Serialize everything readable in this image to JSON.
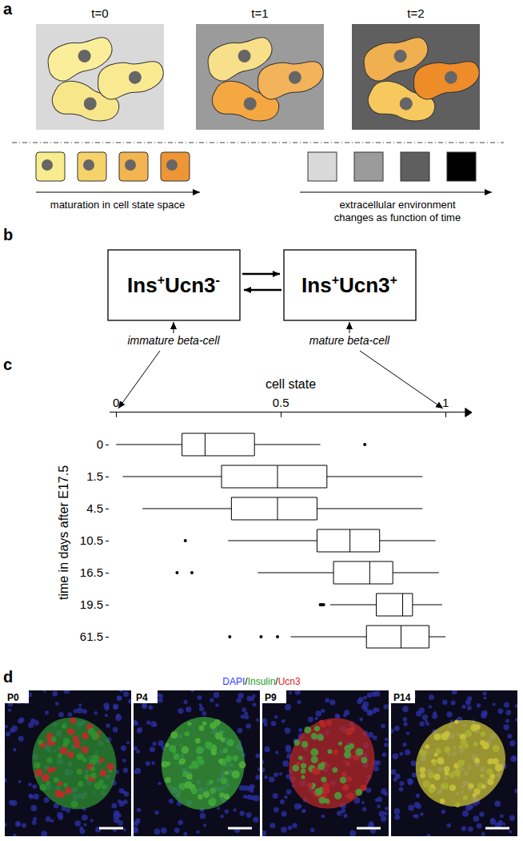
{
  "panel_labels": [
    "a",
    "b",
    "c",
    "d"
  ],
  "panel_a": {
    "time_labels": [
      "t=0",
      "t=1",
      "t=2"
    ],
    "cell_state_caption": "maturation in cell state space",
    "environment_caption": [
      "extracellular environment",
      "changes as function of time"
    ]
  },
  "panel_b": {
    "states": [
      {
        "label": "Ins+Ucn3-",
        "caption": "immature beta-cell"
      },
      {
        "label": "Ins+Ucn3+",
        "caption": "mature beta-cell"
      }
    ]
  },
  "chart_data": {
    "type": "box",
    "orientation": "horizontal",
    "x_label": "cell state",
    "y_label": "time in days after E17.5",
    "categories": [
      "0",
      "1.5",
      "4.5",
      "10.5",
      "16.5",
      "19.5",
      "61.5"
    ],
    "lower_whisker": [
      0.0,
      0.02,
      0.08,
      0.34,
      0.43,
      0.65,
      0.53
    ],
    "q1": [
      0.2,
      0.32,
      0.35,
      0.61,
      0.66,
      0.79,
      0.76
    ],
    "median": [
      0.27,
      0.49,
      0.49,
      0.71,
      0.77,
      0.87,
      0.865
    ],
    "q3": [
      0.42,
      0.64,
      0.61,
      0.8,
      0.84,
      0.9,
      0.95
    ],
    "upper_whisker": [
      0.62,
      0.93,
      0.93,
      0.97,
      0.98,
      0.99,
      1.0
    ],
    "outliers": [
      [
        0.755
      ],
      [],
      [],
      [
        0.21
      ],
      [
        0.185,
        0.23
      ],
      [
        0.62,
        0.625,
        0.63
      ],
      [
        0.345,
        0.44,
        0.49
      ]
    ],
    "color": "#000000",
    "xlim": [
      -0.02,
      1.08
    ],
    "xticks": [
      0,
      0.5,
      1
    ],
    "grid": false
  },
  "panel_d": {
    "stains": [
      {
        "text": "DAPI",
        "color": "#2f3cff"
      },
      {
        "text": "Insulin",
        "color": "#1aa01a"
      },
      {
        "text": "Ucn3",
        "color": "#e02020"
      }
    ],
    "separator": "/",
    "images": [
      "P0",
      "P4",
      "P9",
      "P14"
    ]
  }
}
